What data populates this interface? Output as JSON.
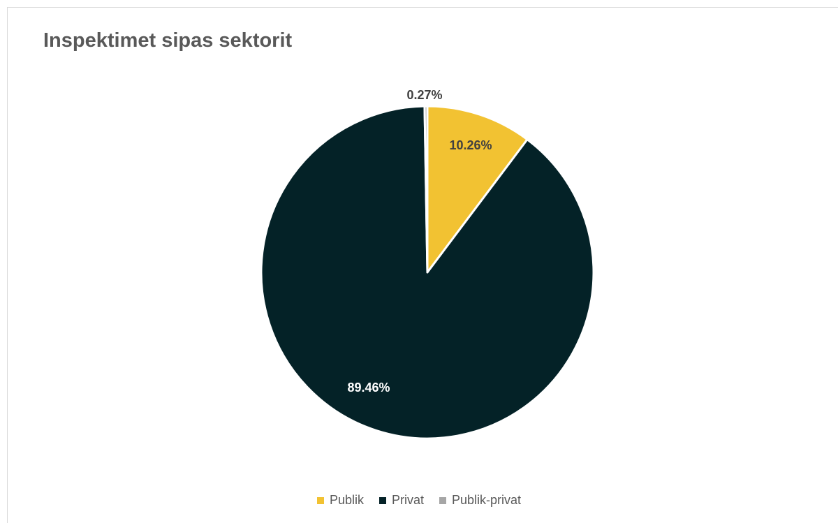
{
  "chart_data": {
    "type": "pie",
    "title": "Inspektimet sipas sektorit",
    "slices": [
      {
        "label": "Publik",
        "value": 10.26,
        "display": "10.26%",
        "color": "#f2c232",
        "label_color": "#404040"
      },
      {
        "label": "Privat",
        "value": 89.46,
        "display": "89.46%",
        "color": "#042227",
        "label_color": "#ffffff"
      },
      {
        "label": "Publik-privat",
        "value": 0.27,
        "display": "0.27%",
        "color": "#a6a6a6",
        "label_color": "#404040"
      }
    ],
    "legend_position": "bottom",
    "start_angle": "top, clockwise",
    "slice_border_color": "#ffffff"
  }
}
